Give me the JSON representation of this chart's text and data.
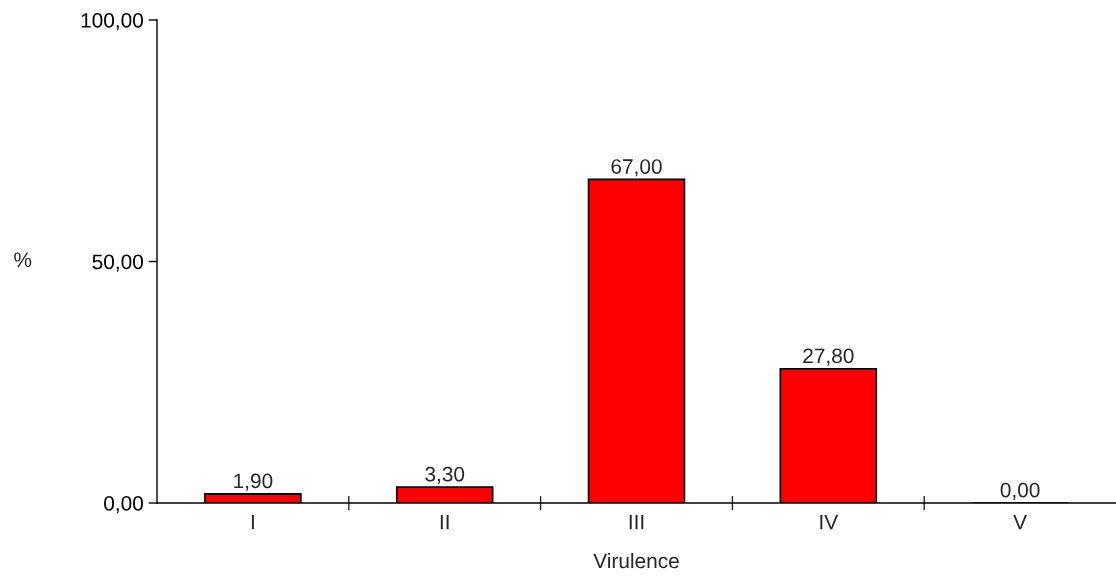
{
  "chart_data": {
    "type": "bar",
    "xlabel": "Virulence",
    "ylabel": "%",
    "categories": [
      "I",
      "II",
      "III",
      "IV",
      "V"
    ],
    "values": [
      1.9,
      3.3,
      67.0,
      27.8,
      0.0
    ],
    "value_labels": [
      "1,90",
      "3,30",
      "67,00",
      "27,80",
      "0,00"
    ],
    "color": "#ff0000",
    "ylim": [
      0,
      100
    ],
    "yticks": [
      {
        "value": 0,
        "label": "0,00"
      },
      {
        "value": 50,
        "label": "50,00"
      },
      {
        "value": 100,
        "label": "100,00"
      }
    ],
    "grid": false,
    "legend": false
  }
}
